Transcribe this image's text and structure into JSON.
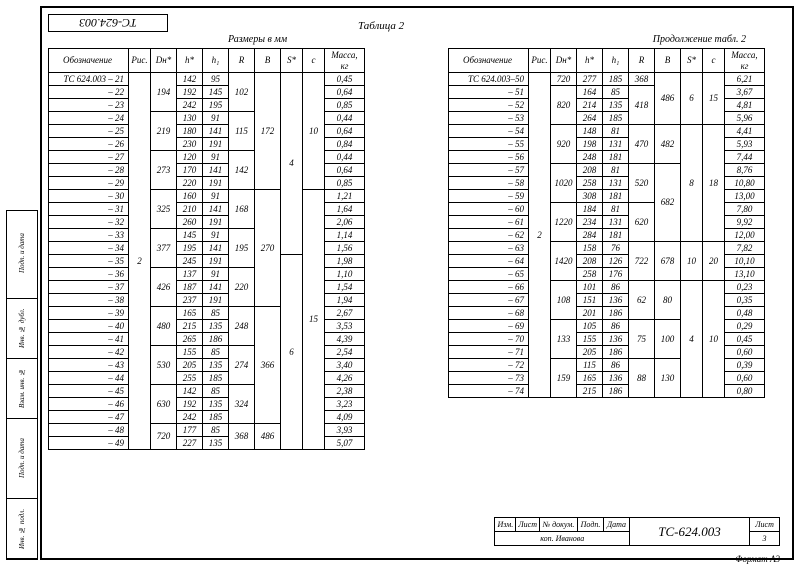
{
  "doc_code": "ТС-624.003",
  "title": "Таблица 2",
  "subtitle_left": "Размеры в мм",
  "subtitle_right": "Продолжение табл. 2",
  "headers": {
    "o": "Обозначение",
    "p": "Рис.",
    "d": "Dн*",
    "h": "h*",
    "h1": "h₁",
    "r": "R",
    "b": "B",
    "s": "S*",
    "c": "c",
    "m": "Масса, кг"
  },
  "left_table": {
    "rows": [
      {
        "o": "ТС 624.003 – 21",
        "h": "142",
        "h1": "95",
        "m": "0,45"
      },
      {
        "o": "– 22",
        "h": "192",
        "h1": "145",
        "m": "0,64"
      },
      {
        "o": "– 23",
        "h": "242",
        "h1": "195",
        "m": "0,85"
      },
      {
        "o": "– 24",
        "h": "130",
        "h1": "91",
        "m": "0,44"
      },
      {
        "o": "– 25",
        "h": "180",
        "h1": "141",
        "m": "0,64"
      },
      {
        "o": "– 26",
        "h": "230",
        "h1": "191",
        "m": "0,84"
      },
      {
        "o": "– 27",
        "h": "120",
        "h1": "91",
        "m": "0,44"
      },
      {
        "o": "– 28",
        "h": "170",
        "h1": "141",
        "m": "0,64"
      },
      {
        "o": "– 29",
        "h": "220",
        "h1": "191",
        "m": "0,85"
      },
      {
        "o": "– 30",
        "h": "160",
        "h1": "91",
        "m": "1,21"
      },
      {
        "o": "– 31",
        "h": "210",
        "h1": "141",
        "m": "1,64"
      },
      {
        "o": "– 32",
        "h": "260",
        "h1": "191",
        "m": "2,06"
      },
      {
        "o": "– 33",
        "h": "145",
        "h1": "91",
        "m": "1,14"
      },
      {
        "o": "– 34",
        "h": "195",
        "h1": "141",
        "m": "1,56"
      },
      {
        "o": "– 35",
        "h": "245",
        "h1": "191",
        "m": "1,98"
      },
      {
        "o": "– 36",
        "h": "137",
        "h1": "91",
        "m": "1,10"
      },
      {
        "o": "– 37",
        "h": "187",
        "h1": "141",
        "m": "1,54"
      },
      {
        "o": "– 38",
        "h": "237",
        "h1": "191",
        "m": "1,94"
      },
      {
        "o": "– 39",
        "h": "165",
        "h1": "85",
        "m": "2,67"
      },
      {
        "o": "– 40",
        "h": "215",
        "h1": "135",
        "m": "3,53"
      },
      {
        "o": "– 41",
        "h": "265",
        "h1": "186",
        "m": "4,39"
      },
      {
        "o": "– 42",
        "h": "155",
        "h1": "85",
        "m": "2,54"
      },
      {
        "o": "– 43",
        "h": "205",
        "h1": "135",
        "m": "3,40"
      },
      {
        "o": "– 44",
        "h": "255",
        "h1": "185",
        "m": "4,26"
      },
      {
        "o": "– 45",
        "h": "142",
        "h1": "85",
        "m": "2,38"
      },
      {
        "o": "– 46",
        "h": "192",
        "h1": "135",
        "m": "3,23"
      },
      {
        "o": "– 47",
        "h": "242",
        "h1": "185",
        "m": "4,09"
      },
      {
        "o": "– 48",
        "h": "177",
        "h1": "85",
        "m": "3,93"
      },
      {
        "o": "– 49",
        "h": "227",
        "h1": "135",
        "m": "5,07"
      }
    ],
    "p_span": {
      "text": "2",
      "rows": 29
    },
    "d_spans": [
      {
        "text": "194",
        "rows": 3
      },
      {
        "text": "219",
        "rows": 3
      },
      {
        "text": "273",
        "rows": 3
      },
      {
        "text": "325",
        "rows": 3
      },
      {
        "text": "377",
        "rows": 3
      },
      {
        "text": "426",
        "rows": 3
      },
      {
        "text": "480",
        "rows": 3
      },
      {
        "text": "530",
        "rows": 3
      },
      {
        "text": "630",
        "rows": 3
      },
      {
        "text": "720",
        "rows": 2
      }
    ],
    "r_spans": [
      {
        "text": "102",
        "rows": 3
      },
      {
        "text": "115",
        "rows": 3
      },
      {
        "text": "142",
        "rows": 3
      },
      {
        "text": "168",
        "rows": 3
      },
      {
        "text": "195",
        "rows": 3
      },
      {
        "text": "220",
        "rows": 3
      },
      {
        "text": "248",
        "rows": 3
      },
      {
        "text": "274",
        "rows": 3
      },
      {
        "text": "324",
        "rows": 3
      },
      {
        "text": "368",
        "rows": 2
      }
    ],
    "b_spans": [
      {
        "text": "172",
        "rows": 9
      },
      {
        "text": "270",
        "rows": 9
      },
      {
        "text": "366",
        "rows": 9
      },
      {
        "text": "486",
        "rows": 2
      }
    ],
    "s_spans": [
      {
        "text": "4",
        "rows": 14
      },
      {
        "text": "6",
        "rows": 15
      }
    ],
    "c_spans": [
      {
        "text": "10",
        "rows": 9
      },
      {
        "text": "15",
        "rows": 20
      }
    ]
  },
  "right_table": {
    "rows": [
      {
        "o": "ТС 624.003–50",
        "h": "277",
        "h1": "185",
        "m": "6,21"
      },
      {
        "o": "– 51",
        "h": "164",
        "h1": "85",
        "m": "3,67"
      },
      {
        "o": "– 52",
        "h": "214",
        "h1": "135",
        "m": "4,81"
      },
      {
        "o": "– 53",
        "h": "264",
        "h1": "185",
        "m": "5,96"
      },
      {
        "o": "– 54",
        "h": "148",
        "h1": "81",
        "m": "4,41"
      },
      {
        "o": "– 55",
        "h": "198",
        "h1": "131",
        "m": "5,93"
      },
      {
        "o": "– 56",
        "h": "248",
        "h1": "181",
        "m": "7,44"
      },
      {
        "o": "– 57",
        "h": "208",
        "h1": "81",
        "m": "8,76"
      },
      {
        "o": "– 58",
        "h": "258",
        "h1": "131",
        "m": "10,80"
      },
      {
        "o": "– 59",
        "h": "308",
        "h1": "181",
        "m": "13,00"
      },
      {
        "o": "– 60",
        "h": "184",
        "h1": "81",
        "m": "7,80"
      },
      {
        "o": "– 61",
        "h": "234",
        "h1": "131",
        "m": "9,92"
      },
      {
        "o": "– 62",
        "h": "284",
        "h1": "181",
        "m": "12,00"
      },
      {
        "o": "– 63",
        "h": "158",
        "h1": "76",
        "m": "7,82"
      },
      {
        "o": "– 64",
        "h": "208",
        "h1": "126",
        "m": "10,10"
      },
      {
        "o": "– 65",
        "h": "258",
        "h1": "176",
        "m": "13,10"
      },
      {
        "o": "– 66",
        "h": "101",
        "h1": "86",
        "m": "0,23"
      },
      {
        "o": "– 67",
        "h": "151",
        "h1": "136",
        "m": "0,35"
      },
      {
        "o": "– 68",
        "h": "201",
        "h1": "186",
        "m": "0,48"
      },
      {
        "o": "– 69",
        "h": "105",
        "h1": "86",
        "m": "0,29"
      },
      {
        "o": "– 70",
        "h": "155",
        "h1": "136",
        "m": "0,45"
      },
      {
        "o": "– 71",
        "h": "205",
        "h1": "186",
        "m": "0,60"
      },
      {
        "o": "– 72",
        "h": "115",
        "h1": "86",
        "m": "0,39"
      },
      {
        "o": "– 73",
        "h": "165",
        "h1": "136",
        "m": "0,60"
      },
      {
        "o": "– 74",
        "h": "215",
        "h1": "186",
        "m": "0,80"
      }
    ],
    "p_span": {
      "text": "2",
      "rows": 25
    },
    "d_spans": [
      {
        "text": "720",
        "rows": 1
      },
      {
        "text": "820",
        "rows": 3
      },
      {
        "text": "920",
        "rows": 3
      },
      {
        "text": "1020",
        "rows": 3
      },
      {
        "text": "1220",
        "rows": 3
      },
      {
        "text": "1420",
        "rows": 3
      },
      {
        "text": "108",
        "rows": 3
      },
      {
        "text": "133",
        "rows": 3
      },
      {
        "text": "159",
        "rows": 3
      }
    ],
    "r_spans": [
      {
        "text": "368",
        "rows": 1
      },
      {
        "text": "418",
        "rows": 3
      },
      {
        "text": "470",
        "rows": 3
      },
      {
        "text": "520",
        "rows": 3
      },
      {
        "text": "620",
        "rows": 3
      },
      {
        "text": "722",
        "rows": 3
      },
      {
        "text": "62",
        "rows": 3
      },
      {
        "text": "75",
        "rows": 3
      },
      {
        "text": "88",
        "rows": 3
      }
    ],
    "b_spans": [
      {
        "text": "486",
        "rows": 4
      },
      {
        "text": "482",
        "rows": 3
      },
      {
        "text": "682",
        "rows": 6
      },
      {
        "text": "678",
        "rows": 3
      },
      {
        "text": "80",
        "rows": 3
      },
      {
        "text": "100",
        "rows": 3
      },
      {
        "text": "130",
        "rows": 3
      }
    ],
    "s_spans": [
      {
        "text": "6",
        "rows": 4
      },
      {
        "text": "8",
        "rows": 9
      },
      {
        "text": "10",
        "rows": 3
      },
      {
        "text": "4",
        "rows": 9
      }
    ],
    "c_spans": [
      {
        "text": "15",
        "rows": 4
      },
      {
        "text": "18",
        "rows": 9
      },
      {
        "text": "20",
        "rows": 3
      },
      {
        "text": "10",
        "rows": 9
      }
    ]
  },
  "side_labels": [
    "Инв. № подл.",
    "Подп. и дата",
    "Взам. инв. №",
    "Инв. № дубл.",
    "Подп. и дата"
  ],
  "stamp": {
    "cells": [
      "Изм.",
      "Лист",
      "№ докум.",
      "Подп.",
      "Дата"
    ],
    "signer": "коп. Иванова",
    "code": "ТС-624.003",
    "sheet_label": "Лист",
    "sheet": "3",
    "format": "Формат А3"
  }
}
